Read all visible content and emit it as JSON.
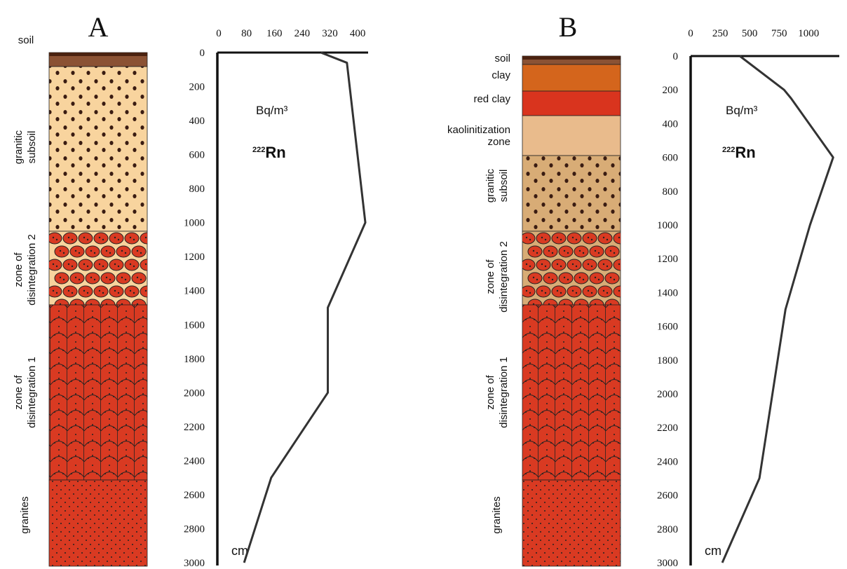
{
  "chart_data": [
    {
      "type": "line",
      "title": "A",
      "values": [
        294,
        369,
        422,
        314,
        314,
        151,
        73
      ],
      "y": [
        0,
        60,
        1000,
        1500,
        2000,
        2500,
        3000
      ],
      "color": "#333333",
      "xlim": [
        0,
        430
      ],
      "xticks": [
        0,
        80,
        160,
        240,
        320,
        400
      ],
      "ylim": [
        0,
        3000
      ],
      "yticks": [
        0,
        200,
        400,
        600,
        800,
        1000,
        1200,
        1400,
        1600,
        1800,
        2000,
        2200,
        2400,
        2600,
        2800,
        3000
      ],
      "y_inverted": true,
      "unit": "Bq/m³",
      "isotope_mass": "222",
      "isotope": "Rn",
      "y_unit": "cm",
      "layers": [
        {
          "label": [
            "soil"
          ]
        },
        {
          "label": [
            "granitic",
            "subsoil"
          ]
        },
        {
          "label": [
            "zone of",
            "disintegration 2"
          ]
        },
        {
          "label": [
            "zone of",
            "disintegration 1"
          ]
        },
        {
          "label": [
            "granites"
          ]
        }
      ]
    },
    {
      "type": "line",
      "title": "B",
      "values": [
        417,
        792,
        851,
        1208,
        1012,
        804,
        583,
        268
      ],
      "y": [
        0,
        200,
        250,
        600,
        1000,
        1500,
        2500,
        3000
      ],
      "color": "#333333",
      "xlim": [
        0,
        1260
      ],
      "xticks": [
        0,
        250,
        500,
        750,
        1000
      ],
      "ylim": [
        0,
        3000
      ],
      "yticks": [
        0,
        200,
        400,
        600,
        800,
        1000,
        1200,
        1400,
        1600,
        1800,
        2000,
        2200,
        2400,
        2600,
        2800,
        3000
      ],
      "y_inverted": true,
      "unit": "Bq/m³",
      "isotope_mass": "222",
      "isotope": "Rn",
      "y_unit": "cm",
      "layers": [
        {
          "label": [
            "soil"
          ]
        },
        {
          "label": [
            "clay"
          ]
        },
        {
          "label": [
            "red clay"
          ]
        },
        {
          "label": [
            "kaolinitization",
            "zone"
          ]
        },
        {
          "label": [
            "granitic",
            "subsoil"
          ]
        },
        {
          "label": [
            "zone of",
            "disintegration 2"
          ]
        },
        {
          "label": [
            "zone of",
            "disintegration 1"
          ]
        },
        {
          "label": [
            "granites"
          ]
        }
      ]
    }
  ]
}
